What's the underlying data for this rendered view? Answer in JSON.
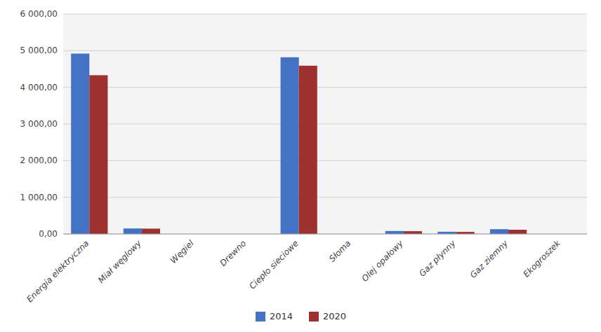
{
  "chart_data": {
    "type": "bar",
    "categories": [
      "Energia elektryczna",
      "Miał węglowy",
      "Węgiel",
      "Drewno",
      "Ciepło sieciowe",
      "Słoma",
      "Olej opałowy",
      "Gaz płynny",
      "Gaz ziemny",
      "Ekogroszek"
    ],
    "series": [
      {
        "name": "2014",
        "color": "#4472C4",
        "values": [
          4920,
          150,
          0,
          0,
          4820,
          0,
          80,
          60,
          130,
          0
        ]
      },
      {
        "name": "2020",
        "color": "#9E3030",
        "values": [
          4330,
          145,
          0,
          0,
          4590,
          0,
          75,
          55,
          115,
          0
        ]
      }
    ],
    "ylim": [
      0,
      6000
    ],
    "yticks": [
      {
        "value": 0,
        "label": "0,00"
      },
      {
        "value": 1000,
        "label": "1 000,00"
      },
      {
        "value": 2000,
        "label": "2 000,00"
      },
      {
        "value": 3000,
        "label": "3 000,00"
      },
      {
        "value": 4000,
        "label": "4 000,00"
      },
      {
        "value": 5000,
        "label": "5 000,00"
      },
      {
        "value": 6000,
        "label": "6 000,00"
      }
    ],
    "grid": true,
    "legend": "bottom"
  }
}
